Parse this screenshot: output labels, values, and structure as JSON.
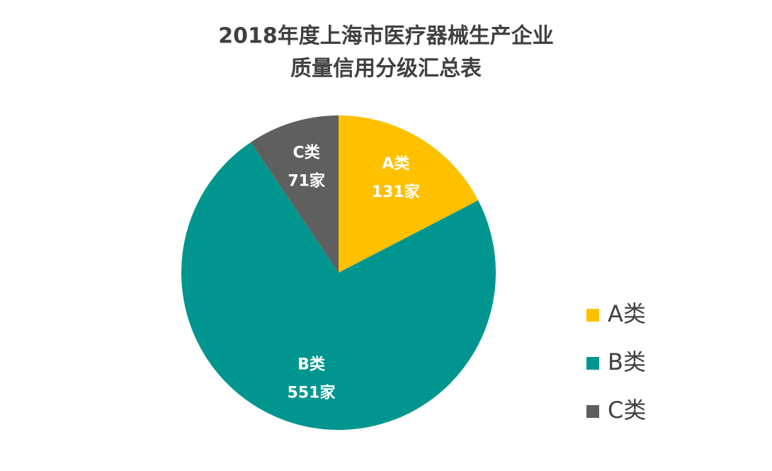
{
  "chart_data": {
    "type": "pie",
    "title": [
      "2018年度上海市医疗器械生产企业",
      "质量信用分级汇总表"
    ],
    "categories": [
      "A类",
      "B类",
      "C类"
    ],
    "values": [
      131,
      551,
      71
    ],
    "value_labels": [
      "131家",
      "551家",
      "71家"
    ],
    "colors": [
      "#FFC000",
      "#00968F",
      "#5F5F5F"
    ],
    "legend": "right"
  }
}
